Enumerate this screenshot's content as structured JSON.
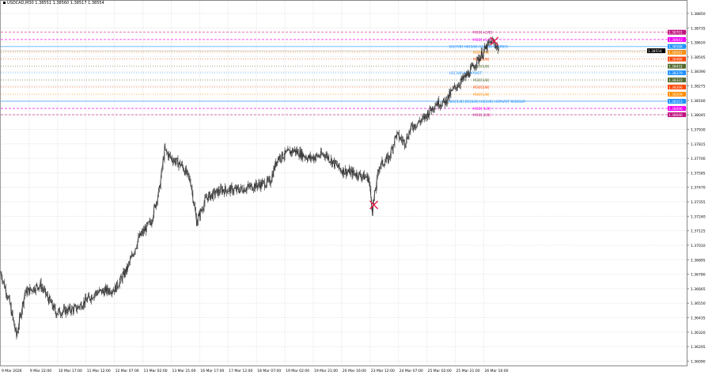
{
  "window": {
    "title": "USDCAD,M30  1.38551 1.38560 1.38517 1.38554"
  },
  "colors": {
    "candles": "#3a3a3a",
    "grid": "#e6e6e6",
    "marker": "#e8174a",
    "current_price": "#000000"
  },
  "chart_data": {
    "type": "line",
    "symbol": "USDCAD",
    "timeframe": "M30",
    "ylim": [
      1.3604,
      1.3896
    ],
    "y_ticks": [
      "1.38850",
      "1.38735",
      "1.38620",
      "1.38505",
      "1.38390",
      "1.38275",
      "1.38160",
      "1.38045",
      "1.37930",
      "1.37815",
      "1.37700",
      "1.37585",
      "1.37470",
      "1.37355",
      "1.37240",
      "1.37125",
      "1.37010",
      "1.36895",
      "1.36780",
      "1.36665",
      "1.36550",
      "1.36435",
      "1.36320",
      "1.36205",
      "1.36090"
    ],
    "x_ticks": [
      {
        "bar": 0,
        "label": "9 Mar 2026"
      },
      {
        "bar": 38,
        "label": "9 Mar 22:00"
      },
      {
        "bar": 76,
        "label": "10 Mar 17:00"
      },
      {
        "bar": 114,
        "label": "11 Mar 12:00"
      },
      {
        "bar": 152,
        "label": "12 Mar 07:00"
      },
      {
        "bar": 190,
        "label": "13 Mar 02:00"
      },
      {
        "bar": 228,
        "label": "13 Mar 21:00"
      },
      {
        "bar": 266,
        "label": "16 Mar 17:00"
      },
      {
        "bar": 304,
        "label": "17 Mar 12:00"
      },
      {
        "bar": 342,
        "label": "18 Mar 07:00"
      },
      {
        "bar": 380,
        "label": "19 Mar 02:00"
      },
      {
        "bar": 418,
        "label": "19 Mar 21:00"
      },
      {
        "bar": 456,
        "label": "20 Mar 16:00"
      },
      {
        "bar": 494,
        "label": "23 Mar 12:00"
      },
      {
        "bar": 532,
        "label": "24 Mar 07:00"
      },
      {
        "bar": 570,
        "label": "25 Mar 02:00"
      },
      {
        "bar": 608,
        "label": "25 Mar 21:00"
      },
      {
        "bar": 646,
        "label": "26 Mar 16:00"
      }
    ],
    "points": [
      {
        "bar": 0,
        "close": 1.3679
      },
      {
        "bar": 11,
        "close": 1.3657
      },
      {
        "bar": 21,
        "close": 1.36288
      },
      {
        "bar": 32,
        "close": 1.36633
      },
      {
        "bar": 53,
        "close": 1.36696
      },
      {
        "bar": 74,
        "close": 1.36476
      },
      {
        "bar": 101,
        "close": 1.36508
      },
      {
        "bar": 127,
        "close": 1.36633
      },
      {
        "bar": 153,
        "close": 1.36665
      },
      {
        "bar": 169,
        "close": 1.36822
      },
      {
        "bar": 185,
        "close": 1.37073
      },
      {
        "bar": 201,
        "close": 1.37198
      },
      {
        "bar": 212,
        "close": 1.3745
      },
      {
        "bar": 219,
        "close": 1.37764
      },
      {
        "bar": 228,
        "close": 1.37701
      },
      {
        "bar": 243,
        "close": 1.37638
      },
      {
        "bar": 254,
        "close": 1.37512
      },
      {
        "bar": 262,
        "close": 1.37198
      },
      {
        "bar": 275,
        "close": 1.37387
      },
      {
        "bar": 296,
        "close": 1.3745
      },
      {
        "bar": 317,
        "close": 1.3745
      },
      {
        "bar": 339,
        "close": 1.37481
      },
      {
        "bar": 360,
        "close": 1.37512
      },
      {
        "bar": 370,
        "close": 1.37701
      },
      {
        "bar": 392,
        "close": 1.37764
      },
      {
        "bar": 413,
        "close": 1.37701
      },
      {
        "bar": 434,
        "close": 1.37732
      },
      {
        "bar": 455,
        "close": 1.37607
      },
      {
        "bar": 476,
        "close": 1.37575
      },
      {
        "bar": 492,
        "close": 1.37544
      },
      {
        "bar": 497,
        "close": 1.37293
      },
      {
        "bar": 506,
        "close": 1.37638
      },
      {
        "bar": 519,
        "close": 1.37701
      },
      {
        "bar": 529,
        "close": 1.37889
      },
      {
        "bar": 540,
        "close": 1.37826
      },
      {
        "bar": 550,
        "close": 1.37952
      },
      {
        "bar": 566,
        "close": 1.38015
      },
      {
        "bar": 582,
        "close": 1.3814
      },
      {
        "bar": 593,
        "close": 1.3814
      },
      {
        "bar": 608,
        "close": 1.38266
      },
      {
        "bar": 624,
        "close": 1.3836
      },
      {
        "bar": 635,
        "close": 1.38454
      },
      {
        "bar": 646,
        "close": 1.38549
      },
      {
        "bar": 656,
        "close": 1.3863
      },
      {
        "bar": 661,
        "close": 1.38611
      },
      {
        "bar": 667,
        "close": 1.38554
      }
    ],
    "markers": [
      {
        "bar": 499,
        "price": 1.3733,
        "shape": "x"
      },
      {
        "bar": 660,
        "price": 1.3863,
        "shape": "x"
      }
    ],
    "current_price": {
      "value": "1.38554",
      "price": 1.38554
    },
    "levels": [
      {
        "label": "M30[+2/8]",
        "price": 1.38701,
        "value": "1.38701",
        "color": "#c0147f",
        "style": "dash"
      },
      {
        "label": "M30[+1/8]",
        "price": 1.38643,
        "value": "1.38643",
        "color": "#f000f0",
        "style": "dash"
      },
      {
        "label": "D1[7/8] H4[3/8] H1[5/8] M30RES",
        "price": 1.38588,
        "value": "1.38588",
        "color": "#1e90ff",
        "style": "solid"
      },
      {
        "label": "M30[7/8]",
        "price": 1.38542,
        "value": "1.38542",
        "color": "#ff8c00",
        "style": "dot"
      },
      {
        "label": "M30[6/8]",
        "price": 1.38488,
        "value": "1.38488",
        "color": "#ff4500",
        "style": "dot"
      },
      {
        "label": "M30[5/8]",
        "price": 1.38431,
        "value": "1.38431",
        "color": "#556b2f",
        "style": "dot"
      },
      {
        "label": "H1[3/8] M30PIVOT",
        "price": 1.38379,
        "value": "1.38379",
        "color": "#1e90ff",
        "style": "dot"
      },
      {
        "label": "M30[3/8]",
        "price": 1.38322,
        "value": "1.38322",
        "color": "#556b2f",
        "style": "dot"
      },
      {
        "label": "M30[2/8]",
        "price": 1.38266,
        "value": "1.38266",
        "color": "#ff4500",
        "style": "dot"
      },
      {
        "label": "M30[1/8]",
        "price": 1.38209,
        "value": "1.38209",
        "color": "#ff8c00",
        "style": "dot"
      },
      {
        "label": "W1[1/8] D1[6/8] H4[2/8] H1PIVOT M30SUP",
        "price": 1.38153,
        "value": "1.38153",
        "color": "#1e90ff",
        "style": "solid"
      },
      {
        "label": "M30[-1/8]",
        "price": 1.38096,
        "value": "1.38096",
        "color": "#f000f0",
        "style": "dash"
      },
      {
        "label": "M30[-2/8]",
        "price": 1.38046,
        "value": "1.38046",
        "color": "#c0147f",
        "style": "dash"
      }
    ]
  }
}
